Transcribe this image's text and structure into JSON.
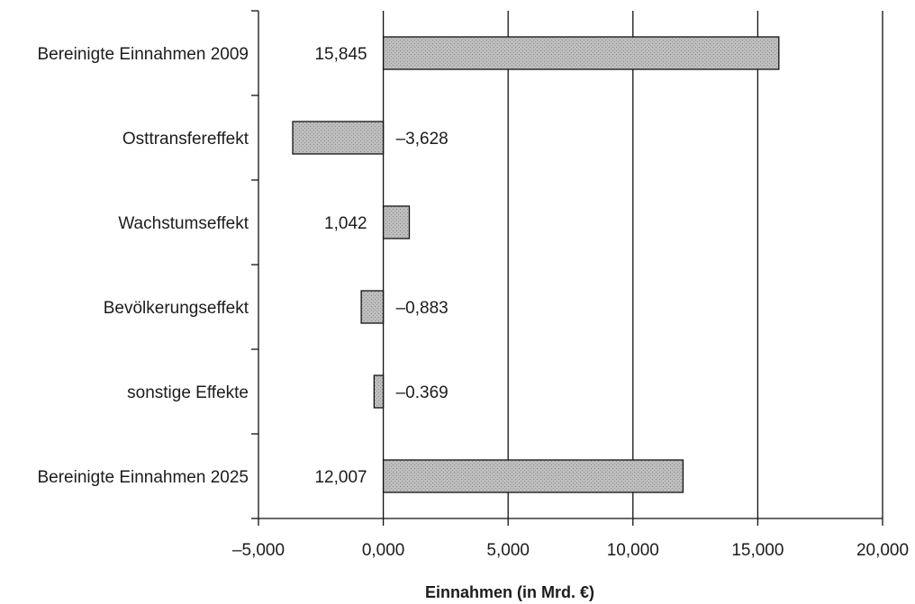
{
  "chart_data": {
    "type": "bar",
    "orientation": "horizontal",
    "categories": [
      "Bereinigte Einnahmen 2009",
      "Osttransfereffekt",
      "Wachstumseffekt",
      "Bevölkerungseffekt",
      "sonstige Effekte",
      "Bereinigte Einnahmen 2025"
    ],
    "values": [
      15.845,
      -3.628,
      1.042,
      -0.883,
      -0.369,
      12.007
    ],
    "value_labels": [
      "15,845",
      "–3,628",
      "1,042",
      "–0,883",
      "–0.369",
      "12,007"
    ],
    "xlabel": "Einnahmen (in Mrd. €)",
    "xlim": [
      -5,
      20
    ],
    "x_ticks": [
      -5,
      0,
      5,
      10,
      15,
      20
    ],
    "x_tick_labels": [
      "–5,000",
      "0,000",
      "5,000",
      "10,000",
      "15,000",
      "20,000"
    ],
    "grid": "vertical",
    "legend": "none",
    "bar_color": "#b8b8b8"
  }
}
